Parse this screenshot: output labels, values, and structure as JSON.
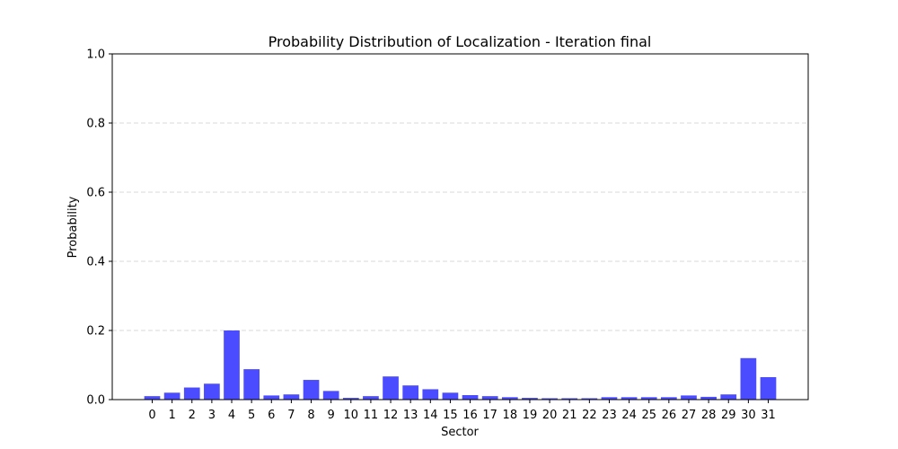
{
  "chart_data": {
    "type": "bar",
    "title": "Probability Distribution of Localization - Iteration final",
    "xlabel": "Sector",
    "ylabel": "Probability",
    "categories": [
      "0",
      "1",
      "2",
      "3",
      "4",
      "5",
      "6",
      "7",
      "8",
      "9",
      "10",
      "11",
      "12",
      "13",
      "14",
      "15",
      "16",
      "17",
      "18",
      "19",
      "20",
      "21",
      "22",
      "23",
      "24",
      "25",
      "26",
      "27",
      "28",
      "29",
      "30",
      "31"
    ],
    "values": [
      0.01,
      0.02,
      0.035,
      0.046,
      0.2,
      0.088,
      0.012,
      0.015,
      0.057,
      0.025,
      0.005,
      0.01,
      0.067,
      0.041,
      0.03,
      0.02,
      0.013,
      0.01,
      0.007,
      0.005,
      0.004,
      0.004,
      0.004,
      0.007,
      0.007,
      0.007,
      0.007,
      0.012,
      0.008,
      0.015,
      0.12,
      0.065
    ],
    "ylim": [
      0,
      1.0
    ],
    "yticks": [
      "0.0",
      "0.2",
      "0.4",
      "0.6",
      "0.8",
      "1.0"
    ],
    "grid": "y-dashed",
    "bar_color": "#4b4bff"
  }
}
